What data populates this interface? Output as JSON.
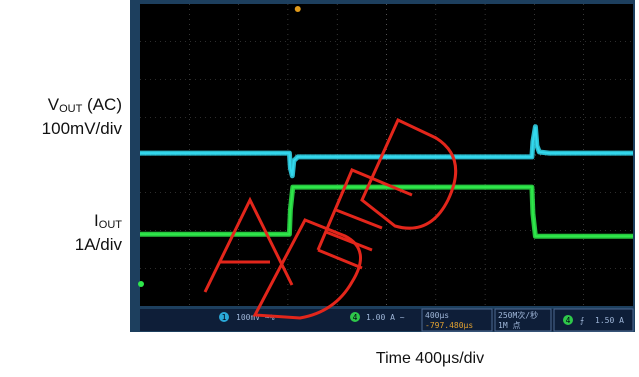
{
  "labels": {
    "vout_symbol": "V",
    "vout_sub": "OUT",
    "vout_suffix": " (AC)",
    "vout_scale": "100mV/div",
    "iout_symbol": "I",
    "iout_sub": "OUT",
    "iout_scale": "1A/div",
    "time": "Time  400μs/div"
  },
  "status_bar": {
    "ch1_badge": "1",
    "ch1_setting": "100mV ~%",
    "ch4_badge": "4",
    "ch4_setting": "1.00 A ~",
    "timebase": "400μs",
    "trigger_pos": "-797.480μs",
    "sample_rate": "250M次/秒",
    "record_length": "1M 点",
    "trig_badge": "4",
    "trig_level": "1.50 A"
  },
  "colors": {
    "frame": "#1d3f5e",
    "screen": "#000000",
    "grid": "#5a5a5a",
    "vout_trace": "#33d9ee",
    "iout_trace": "#2ee84a",
    "watermark": "#e3261b",
    "status_bar_bg": "#0e1e38",
    "status_text": "#9fb6d8"
  },
  "chart_data": {
    "type": "line",
    "title": "",
    "xlabel": "Time  400μs/div",
    "x_divisions": 10,
    "y_divisions": 8,
    "x_unit": "div",
    "series": [
      {
        "name": "VOUT (AC)",
        "scale": "100mV/div",
        "x": [
          0,
          3.03,
          3.05,
          3.09,
          3.12,
          3.2,
          3.4,
          7.95,
          7.97,
          8.02,
          8.05,
          8.1,
          8.3,
          10
        ],
        "y": [
          4.05,
          4.05,
          3.65,
          3.45,
          3.85,
          3.95,
          3.95,
          3.95,
          4.35,
          4.75,
          4.25,
          4.08,
          4.05,
          4.05
        ]
      },
      {
        "name": "IOUT",
        "scale": "1A/div",
        "x": [
          0,
          3.03,
          3.05,
          3.1,
          7.95,
          7.97,
          8.02,
          10
        ],
        "y": [
          1.9,
          1.9,
          2.55,
          3.15,
          3.15,
          2.45,
          1.85,
          1.85
        ]
      }
    ]
  }
}
